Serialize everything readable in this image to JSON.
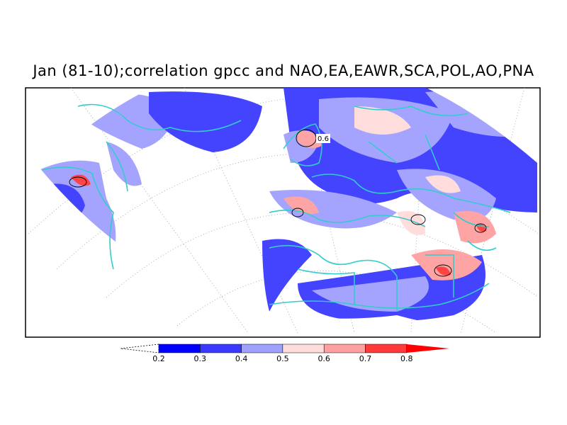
{
  "title": "Jan (81-10);correlation gpcc and NAO,EA,EAWR,SCA,POL,AO,PNA",
  "colorbar": {
    "ticks": [
      "0.2",
      "0.3",
      "0.4",
      "0.5",
      "0.6",
      "0.7",
      "0.8"
    ],
    "colors": [
      "#0000ff",
      "#3a3aff",
      "#a0a0ff",
      "#ffdcdc",
      "#ffa0a0",
      "#ff3a3a",
      "#ff0000"
    ]
  },
  "contour_label": "0.6",
  "map_colors": {
    "boundary": "#33cccc",
    "frame": "#000000",
    "grid": "#999999"
  },
  "projection": "polar-stereographic (lambert conformal) North Atlantic / Europe sector"
}
